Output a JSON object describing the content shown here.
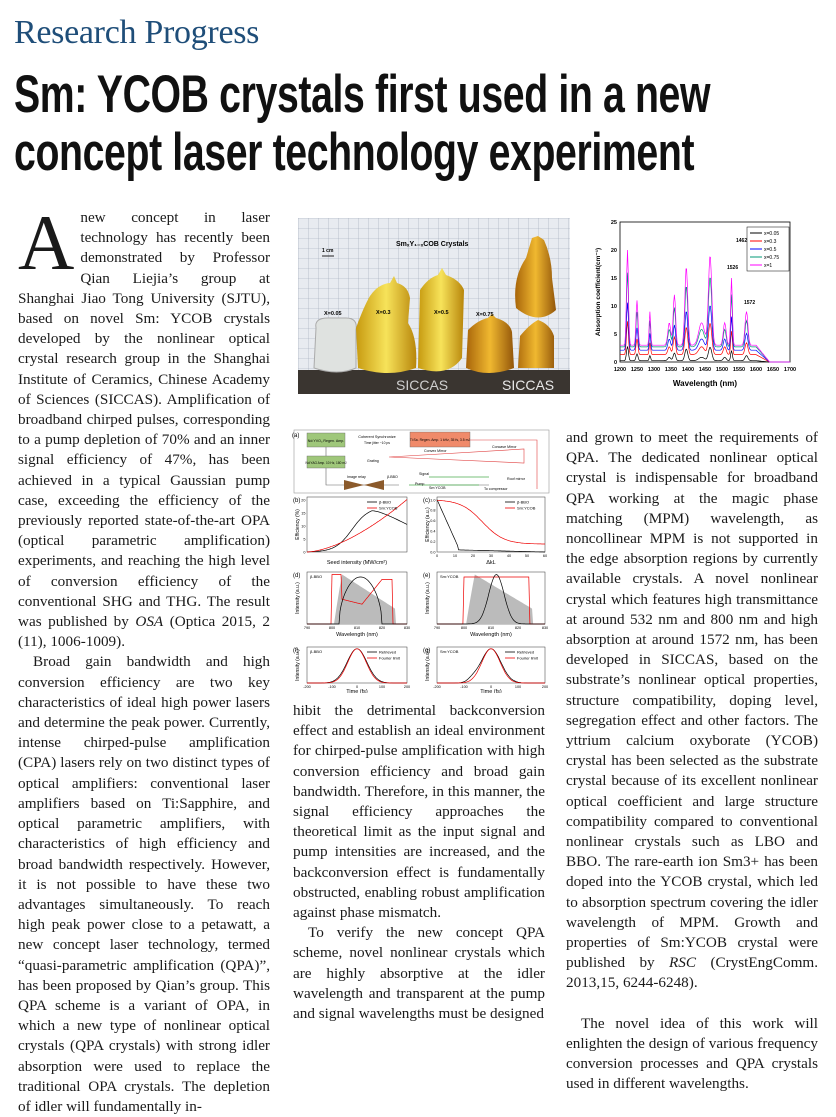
{
  "section": "Research Progress",
  "headline": {
    "line1": "Sm: YCOB crystals first used in a new",
    "line2": "concept laser technology experiment"
  },
  "photo": {
    "title": "SmₓY₁₋ₓCOB Crystals",
    "scale": "1 cm",
    "labels": [
      "X=0.05",
      "X=0.3",
      "X=0.5",
      "X=0.75"
    ],
    "watermarks": [
      "SICCAS",
      "SICCAS"
    ]
  },
  "absorption_chart": {
    "ylabel": "Absorption coefficient(cm⁻¹)",
    "xlabel": "Wavelength (nm)",
    "xticks": [
      "1200",
      "1250",
      "1300",
      "1350",
      "1400",
      "1450",
      "1500",
      "1550",
      "1600",
      "1650",
      "1700"
    ],
    "yticks": [
      "0",
      "5",
      "10",
      "15",
      "20",
      "25"
    ],
    "legend": [
      {
        "name": "x=0.05",
        "color": "#000000"
      },
      {
        "name": "x=0.3",
        "color": "#ff0000"
      },
      {
        "name": "x=0.5",
        "color": "#0000ff"
      },
      {
        "name": "x=0.75",
        "color": "#009977"
      },
      {
        "name": "x=1",
        "color": "#ff00ff"
      }
    ],
    "annotations": [
      "1462",
      "1526",
      "1572"
    ]
  },
  "setup_figure": {
    "panel_a": {
      "label": "(a)",
      "boxes": [
        "Nd:YVO₄ Regen. Amp.",
        "Nd:YAG Amp. 10 Hz, 180 mJ",
        "Ti:Sa. Regen. Amp. 1 kHz, 35 fs, 3.5 mJ"
      ],
      "sync": "Coherent Synchronize",
      "jitter": "Time jitter ~10 ps",
      "parts": [
        "Concave Mirror",
        "Convex Mirror",
        "Grating",
        "Roof mirror",
        "Image relay",
        "β-BBO",
        "Signal",
        "Pump",
        "Sm:YCOB",
        "To compressor"
      ]
    },
    "panel_b": {
      "label": "(b)",
      "ylabel": "Efficiency (%)",
      "xlabel": "Seed intensity (MW/cm²)",
      "yticks": [
        "0",
        "5",
        "10",
        "15",
        "20"
      ],
      "legend": [
        "β-BBO",
        "Sm:YCOB"
      ]
    },
    "panel_c": {
      "label": "(c)",
      "ylabel": "Efficiency (a.u.)",
      "xlabel": "ΔkL",
      "yticks": [
        "0.0",
        "0.2",
        "0.4",
        "0.6",
        "0.8",
        "1.0"
      ],
      "xticks": [
        "0",
        "10",
        "20",
        "30",
        "40",
        "50",
        "60"
      ],
      "legend": [
        "β-BBO",
        "Sm:YCOB"
      ]
    },
    "panel_d": {
      "label": "(d)",
      "name": "β-BBO",
      "ylabel": "Intensity (a.u.)",
      "xlabel": "Wavelength (nm)",
      "xticks": [
        "790",
        "800",
        "810",
        "820",
        "830"
      ]
    },
    "panel_e": {
      "label": "(e)",
      "name": "Sm:YCOB",
      "ylabel": "Intensity (a.u.)",
      "xlabel": "Wavelength (nm)",
      "xticks": [
        "790",
        "800",
        "810",
        "820",
        "830"
      ]
    },
    "panel_f": {
      "label": "(f)",
      "name": "β-BBO",
      "ylabel": "Intensity (a.u.)",
      "xlabel": "Time (fs)",
      "xticks": [
        "-200",
        "-100",
        "0",
        "100",
        "200"
      ],
      "legend": [
        "Retrieved",
        "Fourier limit"
      ]
    },
    "panel_g": {
      "label": "(g)",
      "name": "Sm:YCOB",
      "ylabel": "Intensity (a.u.)",
      "xlabel": "Time (fs)",
      "xticks": [
        "-200",
        "-100",
        "0",
        "100",
        "200"
      ],
      "legend": [
        "Retrieved",
        "Fourier limit"
      ]
    }
  },
  "article": {
    "dropcap": "A",
    "p1": "new concept in laser technology has recently been demonstrated by Professor Qian Liejia’s group at Shanghai Jiao Tong University (SJTU), based on novel Sm: YCOB crystals developed by the nonlinear optical crystal research group in the Shanghai Institute of Ceramics, Chinese Academy of Sciences (SICCAS). Amplification of broadband chirped pulses, corresponding to a pump depletion of 70% and an inner signal efficiency of 47%, has been achieved in a typical Gaussian pump case, exceeding the efficiency of the previously reported state-of-the-art OPA (optical parametric amplification) experiments, and reaching the high level of conversion efficiency of the conventional SHG and THG. The result was published by",
    "p1_journal": "OSA",
    "p1_end": "(Optica 2015, 2 (11), 1006-1009).",
    "p2": "Broad gain bandwidth and high conversion efficiency are two key characteristics of ideal high power lasers and determine the peak power. Currently, intense chirped-pulse amplification (CPA) lasers rely on two distinct types of optical amplifiers: conventional laser amplifiers based on Ti:Sapphire, and optical parametric amplifiers, with characteristics of high efficiency and broad bandwidth respectively. However, it is not possible to have these two advantages simultaneously. To reach high peak power close to a petawatt, a new concept laser technology, termed “quasi-parametric amplification (QPA)”, has been proposed by Qian’s group. This QPA scheme is a variant of OPA, in which a new type of nonlinear optical crystals (QPA crystals) with strong idler absorption were used to replace the traditional OPA crystals. The depletion of idler will fundamentally in-",
    "p2_cont": "hibit the detrimental backconversion effect and establish an ideal environment for chirped-pulse amplification with high conversion efficiency and broad gain bandwidth. Therefore, in this manner, the signal efficiency approaches the theoretical limit as the input signal and pump intensities are increased, and the backconversion effect is fundamentally obstructed, enabling robust amplification against phase mismatch.",
    "p3": "To verify the new concept QPA scheme, novel nonlinear crystals which are highly absorptive at the idler wavelength and transparent at the pump and signal wavelengths must be designed",
    "p3_cont": "and grown to meet the requirements of QPA. The dedicated nonlinear optical crystal is indispensable for broadband QPA working at the magic phase matching (MPM) wavelength, as noncollinear MPM is not supported in the edge absorption regions by currently available crystals. A novel nonlinear crystal which features high transmittance at around 532 nm and 800 nm and high absorption at around 1572 nm, has been developed in SICCAS, based on the substrate’s nonlinear optical properties, structure compatibility, doping level, segregation effect and other factors. The yttrium calcium oxyborate (YCOB) crystal has been selected as the substrate crystal because of its excellent nonlinear optical coefficient and large structure compatibility compared to conventional nonlinear crystals such as LBO and BBO. The rare-earth ion Sm3+ has been doped into the YCOB crystal, which led to absorption spectrum covering the idler wavelength of MPM. Growth and properties of Sm:YCOB crystal were published by",
    "p3_journal": "RSC",
    "p3_end": "(CrystEngComm. 2013,15, 6244-6248).",
    "p4": "The novel idea of this work will enlighten the design of various frequency conversion processes and QPA crystals used in different wavelengths."
  }
}
